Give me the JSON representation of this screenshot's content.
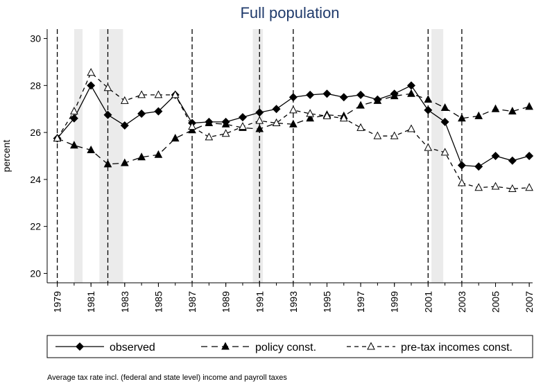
{
  "chart_data": {
    "type": "line",
    "title": "Full population",
    "y_label": "percent",
    "caption": "Average tax rate incl. (federal and state level) income and payroll taxes",
    "x": [
      1979,
      1980,
      1981,
      1982,
      1983,
      1984,
      1985,
      1986,
      1987,
      1988,
      1989,
      1990,
      1991,
      1992,
      1993,
      1994,
      1995,
      1996,
      1997,
      1998,
      1999,
      2000,
      2001,
      2002,
      2003,
      2004,
      2005,
      2006,
      2007
    ],
    "series": [
      {
        "name": "observed",
        "color": "#000000",
        "marker": "diamond",
        "dash": "solid",
        "values": [
          25.75,
          26.6,
          28.0,
          26.75,
          26.3,
          26.8,
          26.9,
          27.6,
          26.4,
          26.45,
          26.45,
          26.65,
          26.85,
          27.0,
          27.5,
          27.6,
          27.65,
          27.5,
          27.6,
          27.4,
          27.65,
          28.0,
          26.95,
          26.45,
          24.6,
          24.55,
          25.0,
          24.8,
          25.0
        ]
      },
      {
        "name": "policy const.",
        "color": "#000000",
        "marker": "triangle",
        "dash": "long",
        "values": [
          25.75,
          25.45,
          25.25,
          24.65,
          24.7,
          24.95,
          25.05,
          25.75,
          26.1,
          26.4,
          26.35,
          26.2,
          26.15,
          26.4,
          26.35,
          26.6,
          26.75,
          26.7,
          27.15,
          27.35,
          27.55,
          27.65,
          27.4,
          27.05,
          26.6,
          26.7,
          27.0,
          26.9,
          27.1
        ]
      },
      {
        "name": "pre-tax incomes const.",
        "color": "#000000",
        "marker": "triangle-open",
        "dash": "short",
        "values": [
          25.75,
          26.9,
          28.55,
          27.9,
          27.35,
          27.6,
          27.6,
          27.6,
          26.25,
          25.8,
          25.95,
          26.25,
          26.5,
          26.4,
          26.95,
          26.8,
          26.7,
          26.6,
          26.2,
          25.85,
          25.85,
          26.15,
          25.35,
          25.15,
          23.85,
          23.65,
          23.7,
          23.6,
          23.65
        ]
      }
    ],
    "shaded_regions": [
      [
        1980,
        1980.5
      ],
      [
        1981.5,
        1982.9
      ],
      [
        1990.6,
        1991.2
      ],
      [
        2001.2,
        2001.9
      ]
    ],
    "vlines": [
      1979,
      1982,
      1987,
      1991,
      1993,
      2001,
      2003
    ],
    "xlim": [
      1978.4,
      2007.2
    ],
    "xticks": [
      1979,
      1981,
      1983,
      1985,
      1987,
      1989,
      1991,
      1993,
      1995,
      1997,
      1999,
      2001,
      2003,
      2005,
      2007
    ],
    "ylim": [
      19.6,
      30.4
    ],
    "yticks": [
      20,
      22,
      24,
      26,
      28,
      30
    ]
  }
}
